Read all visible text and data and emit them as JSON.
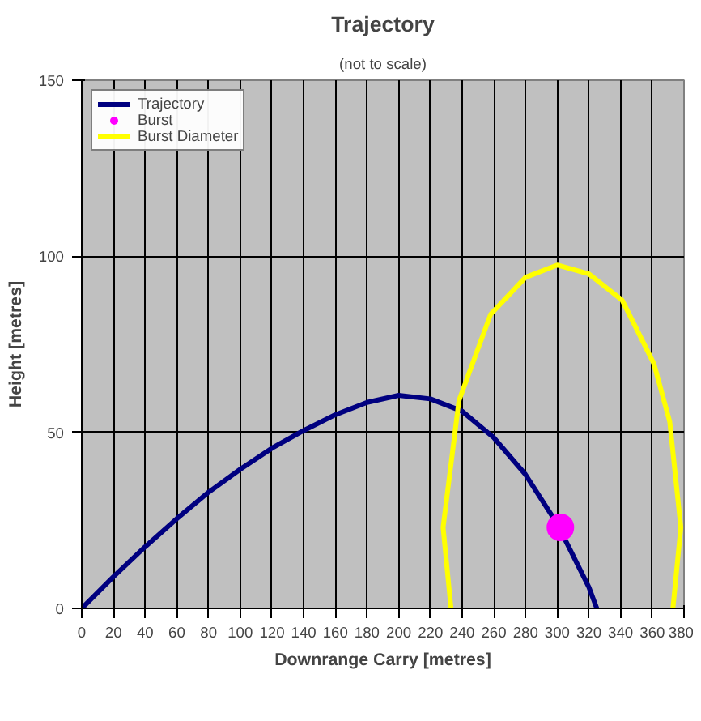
{
  "chart_data": {
    "type": "line",
    "title": "Trajectory",
    "subtitle": "(not to scale)",
    "xlabel": "Downrange Carry [metres]",
    "ylabel": "Height [metres]",
    "xlim": [
      0,
      380
    ],
    "xticks": [
      0,
      20,
      40,
      60,
      80,
      100,
      120,
      140,
      160,
      180,
      200,
      220,
      240,
      260,
      280,
      300,
      320,
      340,
      360,
      380
    ],
    "ylim": [
      0,
      150
    ],
    "yticks": [
      0,
      50,
      100,
      150
    ],
    "grid": true,
    "legend": "top left",
    "series": [
      {
        "name": "Trajectory",
        "color": "#000080",
        "marker": "none",
        "x": [
          0,
          20,
          40,
          60,
          80,
          100,
          120,
          140,
          160,
          180,
          200,
          220,
          240,
          260,
          280,
          300,
          320,
          325
        ],
        "values": [
          0,
          9,
          17.5,
          25.5,
          33,
          39.5,
          45.5,
          50.5,
          55,
          58.5,
          60.5,
          59.5,
          56,
          48.5,
          38,
          24,
          6,
          0
        ]
      },
      {
        "name": "Burst",
        "type": "scatter",
        "color": "#ff00ff",
        "marker": "circle",
        "x": [
          302
        ],
        "values": [
          23
        ]
      },
      {
        "name": "Burst Diameter",
        "type": "line",
        "color": "#ffff00",
        "marker": "none",
        "x": [
          233,
          228,
          238,
          258,
          280,
          300,
          320,
          341,
          361,
          371,
          378,
          373
        ],
        "values": [
          0,
          23,
          59,
          83.5,
          94,
          97.5,
          95,
          87.5,
          69.5,
          53,
          23,
          0
        ]
      }
    ]
  }
}
